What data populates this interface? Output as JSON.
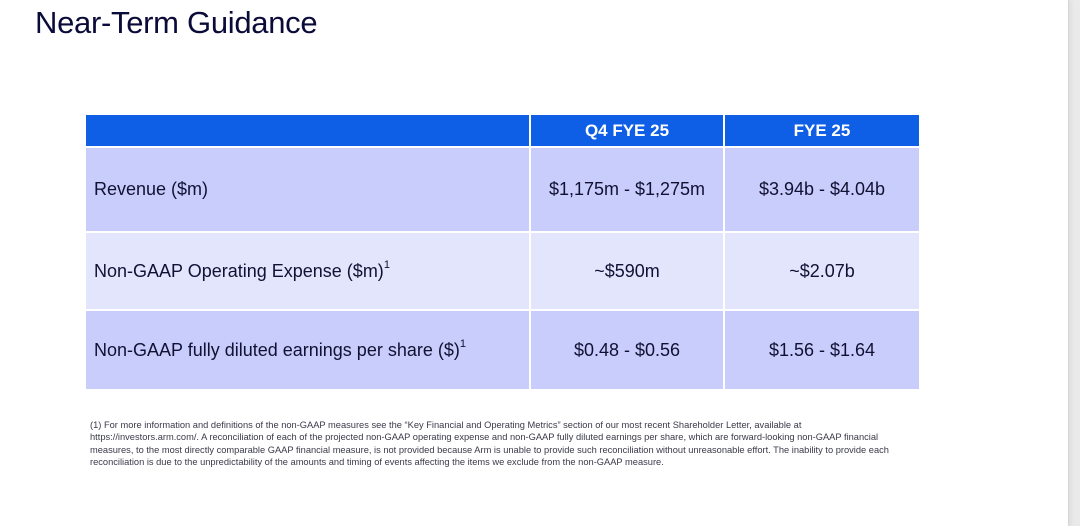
{
  "title": "Near-Term Guidance",
  "table": {
    "headers": [
      "",
      "Q4 FYE 25",
      "FYE 25"
    ],
    "rows": [
      {
        "label": "Revenue ($m)",
        "note": "",
        "q4": "$1,175m - $1,275m",
        "fy": "$3.94b - $4.04b"
      },
      {
        "label": "Non-GAAP Operating Expense ($m)",
        "note": "1",
        "q4": "~$590m",
        "fy": "~$2.07b"
      },
      {
        "label": "Non-GAAP fully diluted earnings per share ($)",
        "note": "1",
        "q4": "$0.48 - $0.56",
        "fy": "$1.56 - $1.64"
      }
    ]
  },
  "footnote": "(1) For more information and definitions of the non-GAAP measures see the “Key Financial and Operating Metrics” section of our most recent Shareholder Letter, available at https://investors.arm.com/. A reconciliation of each of the projected non-GAAP operating expense and non-GAAP fully diluted earnings per share, which are forward-looking non-GAAP financial measures, to the most directly comparable GAAP financial measure, is not provided because Arm is unable to provide such reconciliation without unreasonable effort. The inability to provide each reconciliation is due to the unpredictability of the amounts and timing of events affecting the items we exclude from the non-GAAP measure.",
  "colors": {
    "header_bg": "#0f5fe6",
    "row_dark": "#c9cdfc",
    "row_light": "#e3e5fd",
    "title": "#0b0b3a"
  }
}
